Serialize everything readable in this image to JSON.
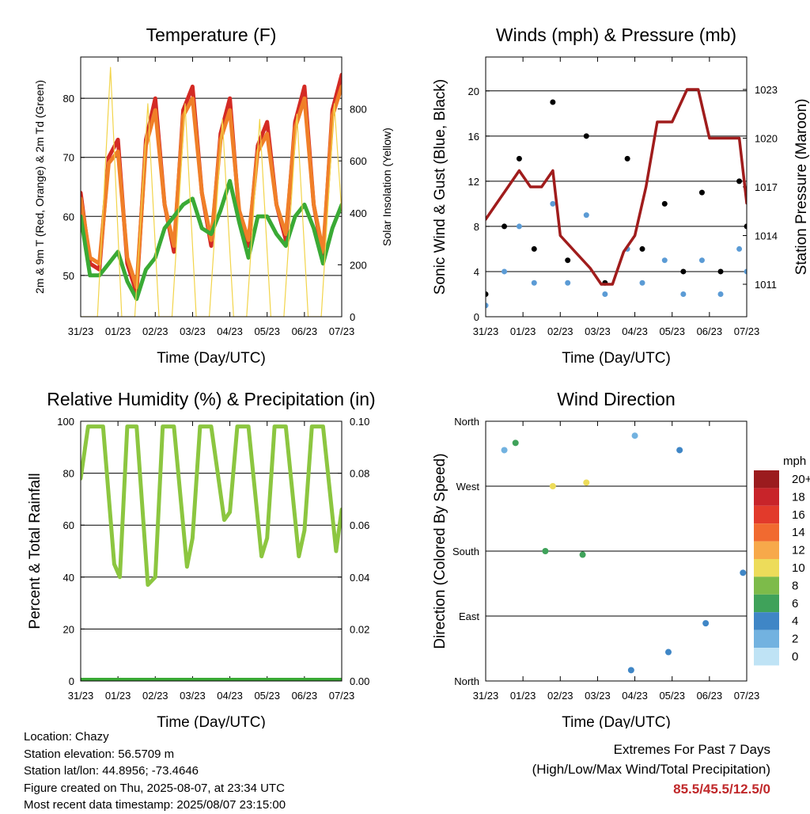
{
  "chart_data": [
    {
      "type": "line",
      "title": "Temperature (F)",
      "xlabel": "Time (Day/UTC)",
      "ylabel_left": "2m & 9m T (Red, Orange) & 2m Td (Green)",
      "ylabel_right": "Solar Insolation (Yellow)",
      "x_ticks": [
        "31/23",
        "01/23",
        "02/23",
        "03/23",
        "04/23",
        "05/23",
        "06/23",
        "07/23"
      ],
      "y_left_ticks": [
        50,
        60,
        70,
        80
      ],
      "ylim_left": [
        43,
        87
      ],
      "y_right_ticks": [
        0,
        200,
        400,
        600,
        800
      ],
      "ylim_right": [
        0,
        1000
      ],
      "series": [
        {
          "name": "2m T",
          "color": "#d42a24",
          "x": [
            0,
            0.25,
            0.5,
            0.75,
            1,
            1.25,
            1.5,
            1.75,
            2,
            2.25,
            2.5,
            2.75,
            3,
            3.25,
            3.5,
            3.75,
            4,
            4.25,
            4.5,
            4.75,
            5,
            5.25,
            5.5,
            5.75,
            6,
            6.25,
            6.5,
            6.75,
            7
          ],
          "y": [
            64,
            52,
            51,
            70,
            73,
            52,
            47,
            73,
            80,
            62,
            54,
            78,
            82,
            64,
            55,
            74,
            80,
            60,
            55,
            72,
            76,
            62,
            56,
            76,
            82,
            62,
            53,
            78,
            84
          ]
        },
        {
          "name": "9m T",
          "color": "#f07f28",
          "x": [
            0,
            0.25,
            0.5,
            0.75,
            1,
            1.25,
            1.5,
            1.75,
            2,
            2.25,
            2.5,
            2.75,
            3,
            3.25,
            3.5,
            3.75,
            4,
            4.25,
            4.5,
            4.75,
            5,
            5.25,
            5.5,
            5.75,
            6,
            6.25,
            6.5,
            6.75,
            7
          ],
          "y": [
            63,
            53,
            52,
            69,
            71,
            53,
            48,
            72,
            78,
            62,
            55,
            77,
            80,
            64,
            56,
            73,
            78,
            61,
            56,
            71,
            74,
            62,
            57,
            75,
            80,
            62,
            54,
            77,
            82
          ]
        },
        {
          "name": "2m Td",
          "color": "#3aaa35",
          "x": [
            0,
            0.25,
            0.5,
            0.75,
            1,
            1.25,
            1.5,
            1.75,
            2,
            2.25,
            2.5,
            2.75,
            3,
            3.25,
            3.5,
            3.75,
            4,
            4.25,
            4.5,
            4.75,
            5,
            5.25,
            5.5,
            5.75,
            6,
            6.25,
            6.5,
            6.75,
            7
          ],
          "y": [
            60,
            50,
            50,
            52,
            54,
            49,
            46,
            51,
            53,
            58,
            60,
            62,
            63,
            58,
            57,
            61,
            66,
            59,
            53,
            60,
            60,
            57,
            55,
            60,
            62,
            58,
            52,
            58,
            62
          ]
        },
        {
          "name": "Solar Insolation",
          "color": "#f2d44a",
          "axis": "right",
          "x": [
            0,
            0.2,
            0.45,
            0.8,
            1.1,
            1.45,
            1.8,
            2.1,
            2.45,
            2.8,
            3.1,
            3.45,
            3.8,
            4.1,
            4.45,
            4.8,
            5.1,
            5.45,
            5.8,
            6.1,
            6.45,
            6.8,
            7
          ],
          "y": [
            0,
            0,
            0,
            960,
            0,
            0,
            820,
            0,
            0,
            820,
            0,
            0,
            760,
            0,
            0,
            760,
            0,
            0,
            780,
            0,
            0,
            820,
            400
          ]
        }
      ]
    },
    {
      "type": "scatter",
      "title": "Winds (mph) & Pressure (mb)",
      "xlabel": "Time (Day/UTC)",
      "ylabel_left": "Sonic Wind & Gust (Blue, Black)",
      "ylabel_right": "Station Pressure (Maroon)",
      "x_ticks": [
        "31/23",
        "01/23",
        "02/23",
        "03/23",
        "04/23",
        "05/23",
        "06/23",
        "07/23"
      ],
      "y_left_ticks": [
        0,
        4,
        8,
        12,
        16,
        20
      ],
      "ylim_left": [
        0,
        23
      ],
      "y_right_ticks": [
        1011,
        1014,
        1017,
        1020,
        1023
      ],
      "ylim_right": [
        1009,
        1025
      ],
      "series": [
        {
          "name": "Sonic Wind",
          "color": "#5b9bd5",
          "x": [
            0,
            0.5,
            0.9,
            1.3,
            1.8,
            2.2,
            2.7,
            3.2,
            3.8,
            4.2,
            4.8,
            5.3,
            5.8,
            6.3,
            6.8,
            7
          ],
          "y": [
            1,
            4,
            8,
            3,
            10,
            3,
            9,
            2,
            6,
            3,
            5,
            2,
            5,
            2,
            6,
            4
          ]
        },
        {
          "name": "Gust",
          "color": "#000000",
          "x": [
            0,
            0.5,
            0.9,
            1.3,
            1.8,
            2.2,
            2.7,
            3.2,
            3.8,
            4.2,
            4.8,
            5.3,
            5.8,
            6.3,
            6.8,
            7
          ],
          "y": [
            2,
            8,
            14,
            6,
            19,
            5,
            16,
            3,
            14,
            6,
            10,
            4,
            11,
            4,
            12,
            8
          ]
        },
        {
          "name": "Station Pressure",
          "color": "#a01c1c",
          "axis": "right",
          "x": [
            0,
            0.3,
            0.6,
            0.9,
            1.2,
            1.5,
            1.8,
            2.0,
            2.4,
            2.8,
            3.1,
            3.4,
            3.7,
            4.0,
            4.3,
            4.6,
            5.0,
            5.4,
            5.7,
            6.0,
            6.4,
            6.8,
            7
          ],
          "y": [
            1015,
            1016,
            1017,
            1018,
            1017,
            1017,
            1018,
            1014,
            1013,
            1012,
            1011,
            1011,
            1013,
            1014,
            1017,
            1021,
            1021,
            1023,
            1023,
            1020,
            1020,
            1020,
            1016
          ]
        }
      ]
    },
    {
      "type": "line",
      "title": "Relative Humidity (%) & Precipitation (in)",
      "xlabel": "Time (Day/UTC)",
      "ylabel_left": "Percent & Total Rainfall",
      "x_ticks": [
        "31/23",
        "01/23",
        "02/23",
        "03/23",
        "04/23",
        "05/23",
        "06/23",
        "07/23"
      ],
      "y_left_ticks": [
        0,
        20,
        40,
        60,
        80,
        100
      ],
      "ylim_left": [
        0,
        100
      ],
      "y_right_ticks": [
        "0.00",
        "0.02",
        "0.04",
        "0.06",
        "0.08",
        "0.10"
      ],
      "ylim_right": [
        0,
        0.1
      ],
      "series": [
        {
          "name": "Relative Humidity",
          "color": "#8cc640",
          "x": [
            0,
            0.2,
            0.6,
            0.9,
            1.05,
            1.25,
            1.5,
            1.8,
            2.0,
            2.2,
            2.5,
            2.85,
            3.0,
            3.2,
            3.5,
            3.85,
            4.0,
            4.2,
            4.5,
            4.85,
            5.0,
            5.2,
            5.5,
            5.85,
            6.0,
            6.2,
            6.5,
            6.85,
            7
          ],
          "y": [
            78,
            98,
            98,
            45,
            40,
            98,
            98,
            37,
            40,
            98,
            98,
            44,
            55,
            98,
            98,
            62,
            65,
            98,
            98,
            48,
            55,
            98,
            98,
            48,
            58,
            98,
            98,
            50,
            66
          ]
        },
        {
          "name": "Total Rainfall",
          "color": "#3aaa35",
          "axis": "right",
          "x": [
            0,
            7
          ],
          "y": [
            0,
            0
          ]
        }
      ]
    },
    {
      "type": "scatter",
      "title": "Wind Direction",
      "xlabel": "Time (Day/UTC)",
      "ylabel_left": "Direction (Colored By Speed)",
      "x_ticks": [
        "31/23",
        "01/23",
        "02/23",
        "03/23",
        "04/23",
        "05/23",
        "06/23",
        "07/23"
      ],
      "y_ticks": [
        "North",
        "East",
        "South",
        "West",
        "North"
      ],
      "ylim_left": [
        0,
        360
      ],
      "colorbar": {
        "title": "mph",
        "labels": [
          "20+",
          "18",
          "16",
          "14",
          "12",
          "10",
          "8",
          "6",
          "4",
          "2",
          "0"
        ],
        "colors": [
          "#9b1b1e",
          "#c8242a",
          "#e23a2b",
          "#f16a30",
          "#f7a94a",
          "#eddc5a",
          "#7dbb4a",
          "#3fa25a",
          "#3f86c6",
          "#72b2e0",
          "#bfe3f5"
        ]
      },
      "points_summary": [
        {
          "x": 0.5,
          "y": 320,
          "speed": 2
        },
        {
          "x": 0.8,
          "y": 330,
          "speed": 6
        },
        {
          "x": 1.8,
          "y": 270,
          "speed": 10
        },
        {
          "x": 2.7,
          "y": 275,
          "speed": 10
        },
        {
          "x": 1.6,
          "y": 180,
          "speed": 6
        },
        {
          "x": 2.6,
          "y": 175,
          "speed": 6
        },
        {
          "x": 3.9,
          "y": 15,
          "speed": 4
        },
        {
          "x": 4.9,
          "y": 40,
          "speed": 4
        },
        {
          "x": 5.9,
          "y": 80,
          "speed": 4
        },
        {
          "x": 6.9,
          "y": 150,
          "speed": 4
        },
        {
          "x": 4.0,
          "y": 340,
          "speed": 2
        },
        {
          "x": 5.2,
          "y": 320,
          "speed": 4
        }
      ]
    }
  ],
  "footer": {
    "location": "Location: Chazy",
    "elevation": "Station elevation: 56.5709 m",
    "latlon": "Station lat/lon: 44.8956; -73.4646",
    "created": "Figure created on Thu, 2025-08-07, at 23:34 UTC",
    "recent": "Most recent data timestamp: 2025/08/07 23:15:00",
    "extremes_title": "Extremes For Past 7 Days",
    "extremes_subtitle": "(High/Low/Max Wind/Total Precipitation)",
    "extremes_value": "85.5/45.5/12.5/0"
  }
}
